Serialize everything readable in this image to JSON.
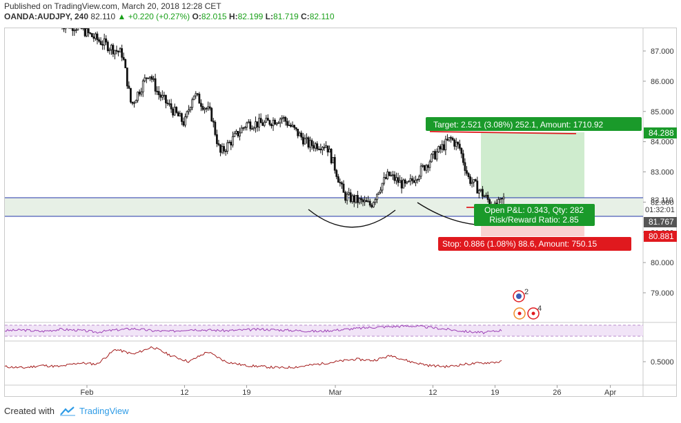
{
  "header": {
    "published": "Published on TradingView.com, March 20, 2018 12:28 CET",
    "symbol": "OANDA:AUDJPY, 240",
    "last": "82.110",
    "change": "+0.220 (+0.27%)",
    "o_label": "O:",
    "o_value": "82.015",
    "h_label": "H:",
    "h_value": "82.199",
    "l_label": "L:",
    "l_value": "81.719",
    "c_label": "C:",
    "c_value": "82.110"
  },
  "footer": {
    "created_with": "Created with",
    "brand": "TradingView"
  },
  "colors": {
    "target": "#1a9a2a",
    "stop": "#e0191e",
    "rsi": "#9b3fb5",
    "osc": "#a31a1a",
    "level": "#2233aa"
  },
  "chart_data": {
    "type": "candlestick",
    "symbol": "OANDA:AUDJPY",
    "interval": "240",
    "y_axis_ticks": [
      "87.000",
      "86.000",
      "85.000",
      "84.000",
      "83.000",
      "82.000",
      "81.000",
      "80.000",
      "79.000"
    ],
    "ylim": [
      78.05,
      88.05
    ],
    "x_axis_ticks": [
      "Feb",
      "12",
      "19",
      "Mar",
      "12",
      "19",
      "26",
      "Apr"
    ],
    "price_path": [
      [
        "Jan 29",
        87.9
      ],
      [
        "Jan 31",
        87.8
      ],
      [
        "Feb 2",
        87.4
      ],
      [
        "Feb 5",
        86.9
      ],
      [
        "Feb 6",
        85.2
      ],
      [
        "Feb 8",
        86.3
      ],
      [
        "Feb 9",
        85.6
      ],
      [
        "Feb 12",
        84.6
      ],
      [
        "Feb 13",
        85.6
      ],
      [
        "Feb 15",
        84.9
      ],
      [
        "Feb 16",
        83.6
      ],
      [
        "Feb 19",
        84.6
      ],
      [
        "Feb 21",
        84.6
      ],
      [
        "Feb 23",
        84.8
      ],
      [
        "Feb 26",
        83.9
      ],
      [
        "Feb 28",
        83.9
      ],
      [
        "Mar 1",
        83.1
      ],
      [
        "Mar 2",
        82.2
      ],
      [
        "Mar 5",
        81.9
      ],
      [
        "Mar 6",
        82.5
      ],
      [
        "Mar 7",
        82.9
      ],
      [
        "Mar 9",
        82.5
      ],
      [
        "Mar 12",
        83.5
      ],
      [
        "Mar 14",
        84.1
      ],
      [
        "Mar 15",
        83.8
      ],
      [
        "Mar 16",
        82.8
      ],
      [
        "Mar 19",
        81.8
      ],
      [
        "Mar 20",
        82.11
      ]
    ],
    "price_labels": {
      "target": "84.288",
      "last": "82.110",
      "countdown": "01:32:01",
      "stop_top": "81.767",
      "stop": "80.881"
    },
    "support_zone": [
      81.5,
      82.0
    ],
    "position": {
      "target_text": "Target: 2.521 (3.08%) 252.1, Amount: 1710.92",
      "open_text": "Open P&L: 0.343, Qty: 282",
      "rr_text": "Risk/Reward Ratio: 2.85",
      "stop_text": "Stop: 0.886 (1.08%) 88.6, Amount: 750.15",
      "entry": 81.767,
      "target": 84.288,
      "stop": 80.881
    },
    "event_markers": [
      "2",
      "4"
    ],
    "indicator_rsi": {
      "values": [
        0.45,
        0.5,
        0.4,
        0.55,
        0.48,
        0.35,
        0.5,
        0.6,
        0.45,
        0.4,
        0.55,
        0.5,
        0.45,
        0.5,
        0.55,
        0.5,
        0.45,
        0.4,
        0.5,
        0.6,
        0.7,
        0.75,
        0.8,
        0.7,
        0.55,
        0.4,
        0.3,
        0.5
      ]
    },
    "indicator_osc": {
      "tick": "0.5000",
      "values": [
        0.46,
        0.45,
        0.47,
        0.46,
        0.49,
        0.48,
        0.6,
        0.56,
        0.62,
        0.55,
        0.5,
        0.58,
        0.5,
        0.47,
        0.46,
        0.45,
        0.46,
        0.48,
        0.5,
        0.52,
        0.51,
        0.55,
        0.5,
        0.47,
        0.46,
        0.48,
        0.49,
        0.5
      ]
    }
  }
}
